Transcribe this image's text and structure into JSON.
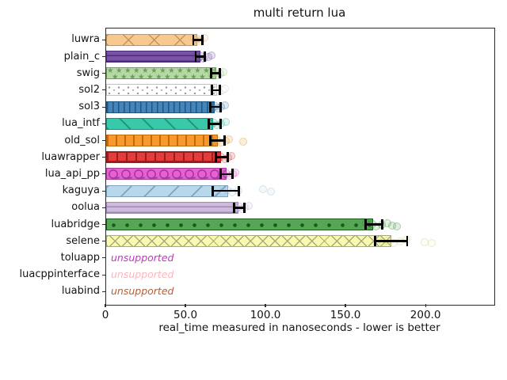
{
  "chart_data": {
    "type": "bar",
    "orientation": "horizontal",
    "title": "multi return lua",
    "xlabel": "real_time measured in nanoseconds - lower is better",
    "xlim": [
      0,
      242.5
    ],
    "grid": false,
    "legend": false,
    "x_ticks": [
      {
        "value": 0,
        "label": "0"
      },
      {
        "value": 50,
        "label": "50.0"
      },
      {
        "value": 100,
        "label": "100.0"
      },
      {
        "value": 150,
        "label": "150.0"
      },
      {
        "value": 200,
        "label": "200.0"
      }
    ],
    "categories": [
      "luwra",
      "plain_c",
      "swig",
      "sol2",
      "sol3",
      "lua_intf",
      "old_sol",
      "luawrapper",
      "lua_api_pp",
      "kaguya",
      "oolua",
      "luabridge",
      "selene",
      "toluapp",
      "luacppinterface",
      "luabind"
    ],
    "bars": [
      {
        "name": "luwra",
        "value": 57,
        "error": [
          55,
          60.5
        ],
        "samples": [
          55.5,
          56.5,
          57.5,
          58.5,
          60,
          62
        ],
        "fill": "#F8C98E",
        "hatch": "X",
        "hatch_color": "#BE9662"
      },
      {
        "name": "plain_c",
        "value": 59,
        "error": [
          56.5,
          62
        ],
        "samples": [
          57,
          58.5,
          60,
          61.5,
          64.5,
          66.5
        ],
        "fill": "#7B52A8",
        "hatch": "-",
        "hatch_color": "#4A2C78"
      },
      {
        "name": "swig",
        "value": 69,
        "error": [
          66,
          71.5
        ],
        "samples": [
          66.5,
          68,
          69,
          70.5,
          72,
          73.5
        ],
        "fill": "#B5D8A5",
        "hatch": "*",
        "hatch_color": "#6B9C59"
      },
      {
        "name": "sol2",
        "value": 69.5,
        "error": [
          66.5,
          71.5
        ],
        "samples": [
          67.5,
          69,
          70,
          71.5,
          73,
          74.5
        ],
        "fill": "#FFFFFF",
        "hatch": ".",
        "hatch_color": "#9C9C9C",
        "edge": "#C2C2C2"
      },
      {
        "name": "sol3",
        "value": 68,
        "error": [
          65.5,
          72
        ],
        "samples": [
          66,
          67.5,
          69,
          70.5,
          72.5,
          74.5
        ],
        "fill": "#4485BB",
        "hatch": "|",
        "hatch_color": "#20557E"
      },
      {
        "name": "lua_intf",
        "value": 67,
        "error": [
          64.5,
          72
        ],
        "samples": [
          65,
          66.5,
          68,
          70,
          72.5,
          75
        ],
        "fill": "#3AC8AB",
        "hatch": "\\",
        "hatch_color": "#1F8F77"
      },
      {
        "name": "old_sol",
        "value": 70,
        "error": [
          65.5,
          74.5
        ],
        "samples": [
          66,
          68,
          70,
          72.5,
          75,
          77,
          86
        ],
        "fill": "#F9992B",
        "hatch": "|",
        "hatch_color": "#BF6B0A"
      },
      {
        "name": "luawrapper",
        "value": 72,
        "error": [
          69,
          76.5
        ],
        "samples": [
          69.5,
          71,
          72.5,
          74.5,
          76.5,
          78.5
        ],
        "fill": "#E23C3C",
        "hatch": "+",
        "hatch_color": "#9C1C1C"
      },
      {
        "name": "lua_api_pp",
        "value": 75,
        "error": [
          72,
          79.5
        ],
        "samples": [
          72.5,
          74,
          75.5,
          77.5,
          79.5,
          81
        ],
        "fill": "#E95FD7",
        "hatch": "O",
        "hatch_color": "#A83A98"
      },
      {
        "name": "kaguya",
        "value": 76,
        "error": [
          67,
          83.5
        ],
        "samples": [
          70,
          73,
          76,
          79,
          83,
          98.5,
          103.5
        ],
        "fill": "#B9D7EA",
        "hatch": "/",
        "hatch_color": "#7FA3BD"
      },
      {
        "name": "oolua",
        "value": 82.5,
        "error": [
          80.5,
          87
        ],
        "samples": [
          80.5,
          82,
          83.5,
          85,
          87,
          89.5
        ],
        "fill": "#CEBADD",
        "hatch": "-",
        "hatch_color": "#A287BC"
      },
      {
        "name": "luabridge",
        "value": 167,
        "error": [
          162.5,
          173
        ],
        "samples": [
          163,
          165,
          167,
          169.5,
          172.5,
          176,
          179,
          182
        ],
        "fill": "#55A755",
        "hatch": ".",
        "hatch_color": "#1A5B1A"
      },
      {
        "name": "selene",
        "value": 178,
        "error": [
          168.5,
          188.5
        ],
        "samples": [
          170,
          173,
          176,
          180,
          184,
          188,
          199.5,
          204
        ],
        "fill": "#FAFAAE",
        "hatch": "x",
        "hatch_color": "#A8A882"
      },
      {
        "name": "toluapp",
        "unsupported": true,
        "label": "unsupported",
        "color": "#C434C4"
      },
      {
        "name": "luacppinterface",
        "unsupported": true,
        "label": "unsupported",
        "color": "#FFB5BA"
      },
      {
        "name": "luabind",
        "unsupported": true,
        "label": "unsupported",
        "color": "#BF5B2D"
      }
    ]
  }
}
